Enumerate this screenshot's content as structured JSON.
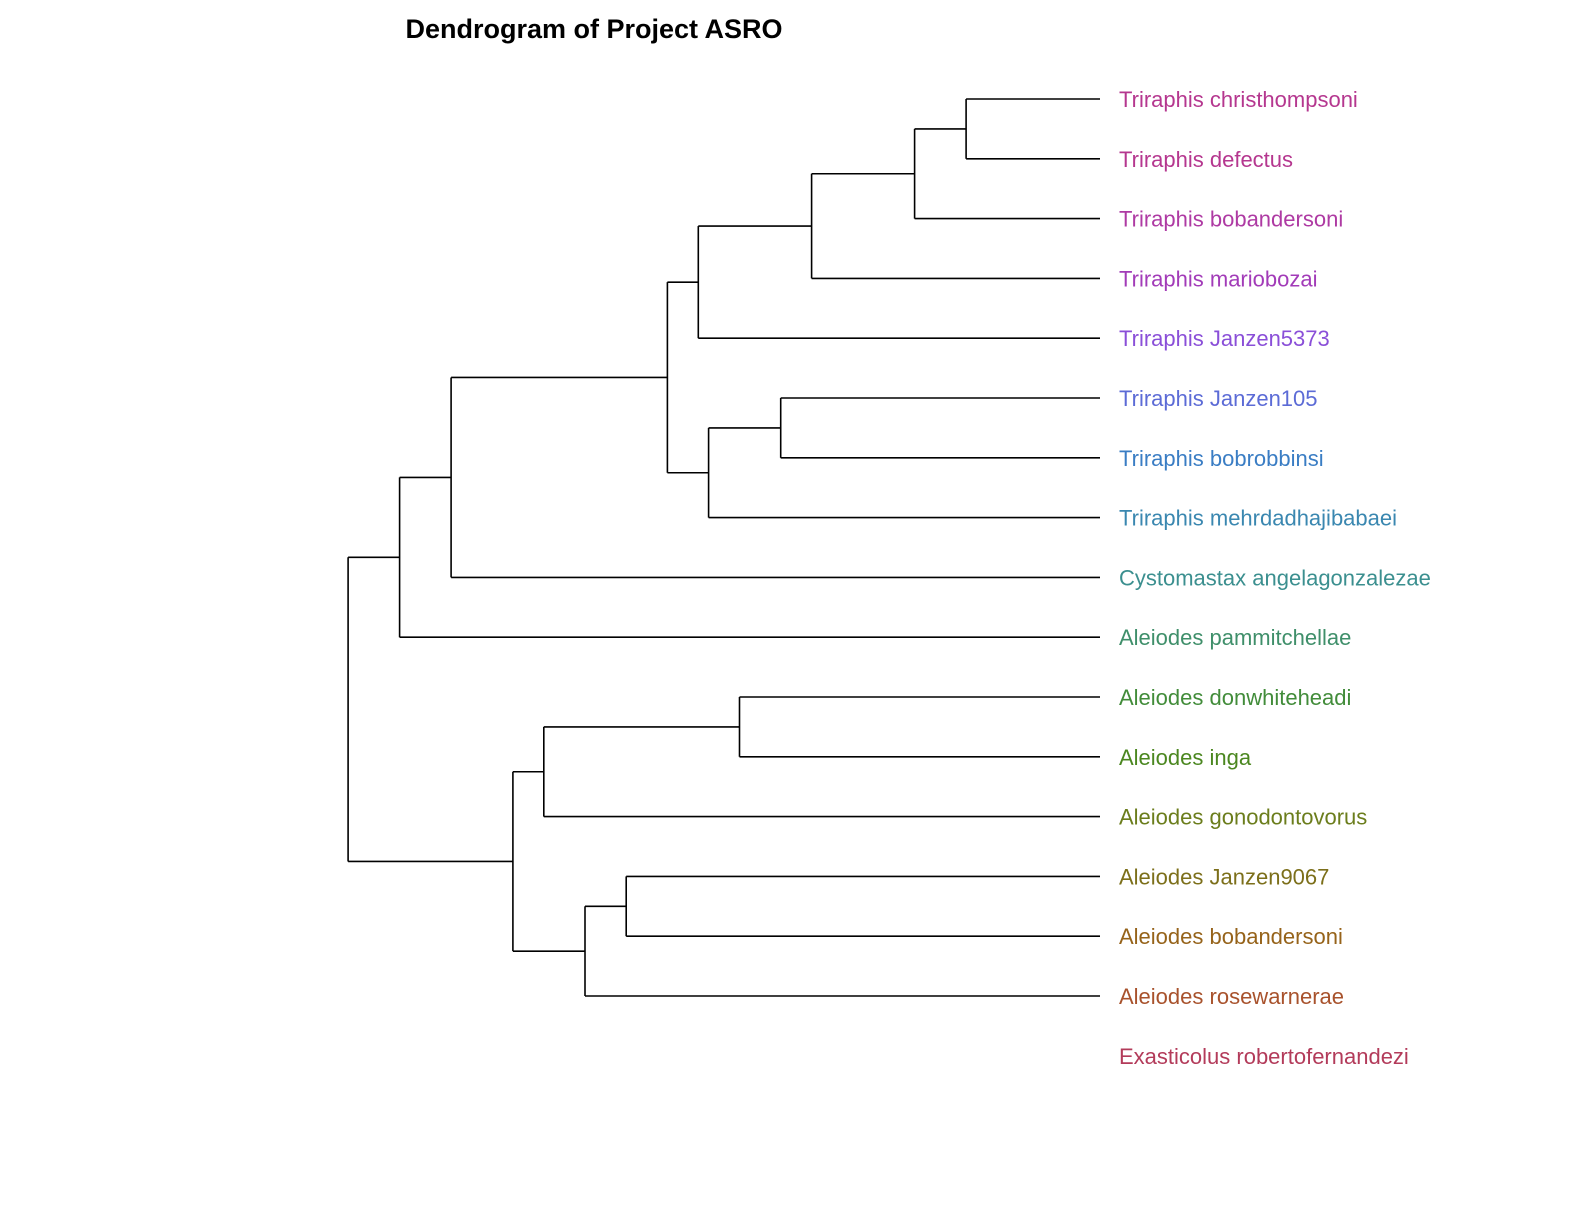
{
  "title": "Dendrogram of Project ASRO",
  "leaves": [
    {
      "label": "Triraphis christhompsoni",
      "color": "#b5378f"
    },
    {
      "label": "Triraphis defectus",
      "color": "#b5378f"
    },
    {
      "label": "Triraphis bobandersoni",
      "color": "#ae3aa3"
    },
    {
      "label": "Triraphis mariobozai",
      "color": "#a23bb8"
    },
    {
      "label": "Triraphis Janzen5373",
      "color": "#8a4fd8"
    },
    {
      "label": "Triraphis Janzen105",
      "color": "#5c6bd6"
    },
    {
      "label": "Triraphis bobrobbinsi",
      "color": "#3a7dc4"
    },
    {
      "label": "Triraphis mehrdadhajibabaei",
      "color": "#3a87b0"
    },
    {
      "label": "Cystomastax angelagonzalezae",
      "color": "#3b8f8f"
    },
    {
      "label": "Aleiodes pammitchellae",
      "color": "#3f8f6a"
    },
    {
      "label": "Aleiodes donwhiteheadi",
      "color": "#428c3a"
    },
    {
      "label": "Aleiodes inga",
      "color": "#4b8720"
    },
    {
      "label": "Aleiodes gonodontovorus",
      "color": "#6b7d1c"
    },
    {
      "label": "Aleiodes Janzen9067",
      "color": "#7c6f1a"
    },
    {
      "label": "Aleiodes bobandersoni",
      "color": "#96631a"
    },
    {
      "label": "Aleiodes rosewarnerae",
      "color": "#a8522c"
    },
    {
      "label": "Exasticolus robertofernandezi",
      "color": "#b33b5a"
    }
  ],
  "tree": {
    "children": [
      {
        "children": [
          {
            "children": [
              {
                "children": [
                  {
                    "children": [
                      {
                        "children": [
                          {
                            "children": [
                              {
                                "children": [
                                  {
                                    "leaf": 0
                                  },
                                  {
                                    "leaf": 1
                                  }
                                ],
                                "height": 0.13
                              },
                              {
                                "leaf": 2
                              }
                            ],
                            "height": 0.18
                          },
                          {
                            "leaf": 3
                          }
                        ],
                        "height": 0.28
                      },
                      {
                        "leaf": 4
                      }
                    ],
                    "height": 0.39
                  },
                  {
                    "children": [
                      {
                        "children": [
                          {
                            "leaf": 5
                          },
                          {
                            "leaf": 6
                          }
                        ],
                        "height": 0.31
                      },
                      {
                        "leaf": 7
                      }
                    ],
                    "height": 0.38
                  }
                ],
                "height": 0.42
              },
              {
                "leaf": 8
              }
            ],
            "height": 0.63
          },
          {
            "leaf": 9
          }
        ],
        "height": 0.68
      },
      {
        "children": [
          {
            "children": [
              {
                "children": [
                  {
                    "leaf": 10
                  },
                  {
                    "leaf": 11
                  }
                ],
                "height": 0.35
              },
              {
                "leaf": 12
              }
            ],
            "height": 0.54
          },
          {
            "children": [
              {
                "children": [
                  {
                    "leaf": 13
                  },
                  {
                    "leaf": 14
                  }
                ],
                "height": 0.46
              },
              {
                "leaf": 15
              }
            ],
            "height": 0.5
          }
        ],
        "height": 0.57
      }
    ],
    "height": 0.73
  },
  "root_height": 1.0,
  "branch_color": "#000000"
}
